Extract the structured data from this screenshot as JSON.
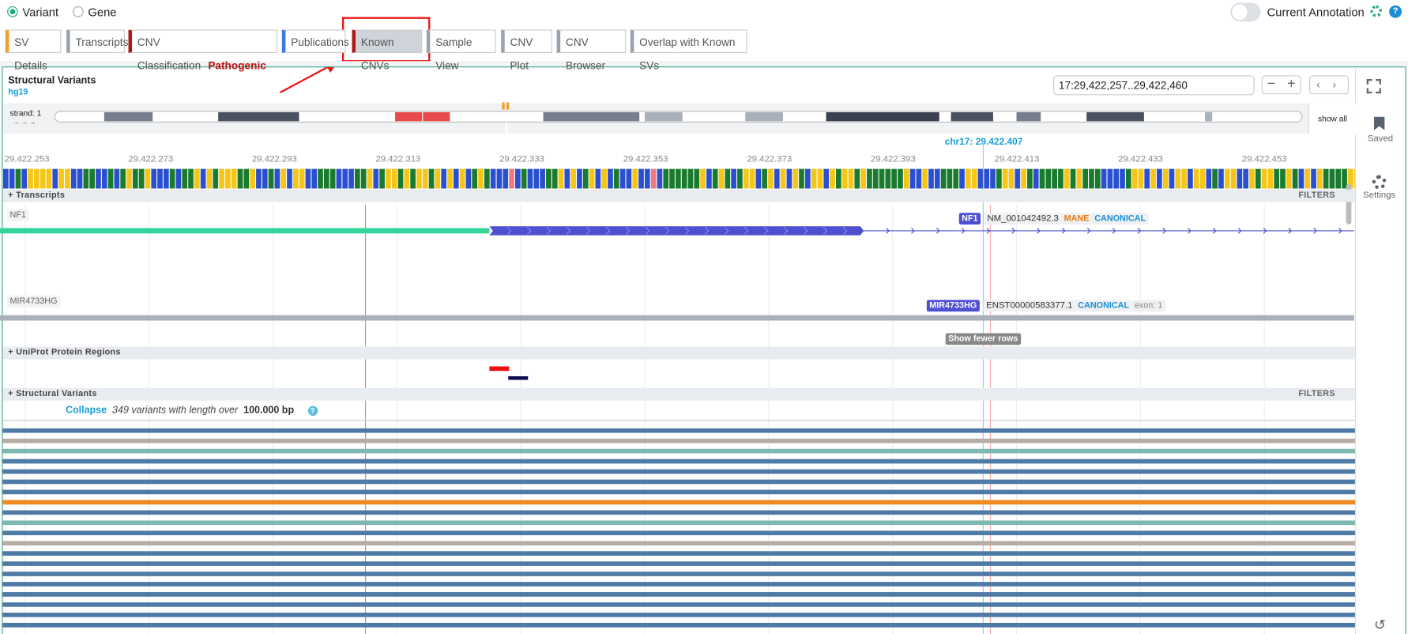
{
  "top_bar": {
    "radios": [
      "Variant",
      "Gene"
    ],
    "toggle_label": "Current Annotation"
  },
  "tabs": [
    "SV Details",
    "Transcripts",
    "CNV Classification",
    "Publications",
    "Known CNVs",
    "Sample View",
    "CNV Plot",
    "CNV Browser",
    "Overlap with Known SVs"
  ],
  "classification_badge": "Pathogenic",
  "panel": {
    "title": "Structural Variants",
    "assembly": "hg19",
    "locus": "17:29,422,257..29,422,460",
    "strand_label": "strand: 1",
    "strand_arrows": "→ → →",
    "show_all": "show all",
    "cursor_label": "chr17: 29.422.407",
    "ruler": [
      "29.422.253",
      "29.422.273",
      "29.422.293",
      "29.422.313",
      "29.422.333",
      "29.422.353",
      "29.422.373",
      "29.422.393",
      "29.422.413",
      "29.422.433",
      "29.422.453"
    ]
  },
  "tracks": {
    "transcripts": {
      "title": "Transcripts",
      "filters": "FILTERS",
      "genes": [
        {
          "name": "NF1",
          "tag": "NF1",
          "transcript": "NM_001042492.3",
          "badges": [
            "MANE",
            "CANONICAL"
          ]
        },
        {
          "name": "MIR4733HG",
          "tag": "MIR4733HG",
          "transcript": "ENST00000583377.1",
          "badges": [
            "CANONICAL",
            "exon: 1"
          ]
        }
      ],
      "show_fewer": "Show fewer rows"
    },
    "uniprot": {
      "title": "UniProt Protein Regions"
    },
    "structural_variants": {
      "title": "Structural Variants",
      "filters": "FILTERS",
      "collapse": "Collapse",
      "summary": "349 variants with length over",
      "threshold": "100.000 bp"
    }
  },
  "sidebar": [
    "Saved",
    "Settings"
  ]
}
